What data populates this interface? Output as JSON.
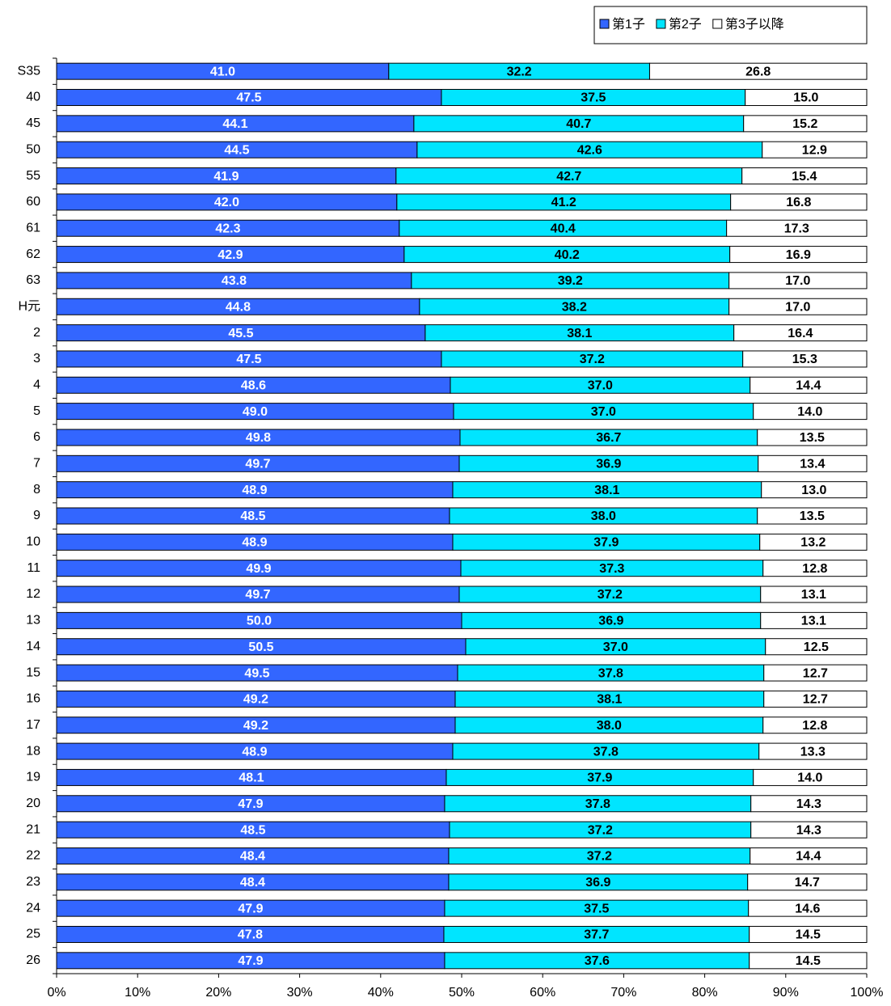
{
  "chart_data": {
    "type": "stacked-bar-horizontal",
    "categories": [
      "S35",
      "40",
      "45",
      "50",
      "55",
      "60",
      "61",
      "62",
      "63",
      "H元",
      "2",
      "3",
      "4",
      "5",
      "6",
      "7",
      "8",
      "9",
      "10",
      "11",
      "12",
      "13",
      "14",
      "15",
      "16",
      "17",
      "18",
      "19",
      "20",
      "21",
      "22",
      "23",
      "24",
      "25",
      "26"
    ],
    "series": [
      {
        "name": "第1子",
        "color": "#3366ff",
        "label_color": "#ffffff",
        "values": [
          41.0,
          47.5,
          44.1,
          44.5,
          41.9,
          42.0,
          42.3,
          42.9,
          43.8,
          44.8,
          45.5,
          47.5,
          48.6,
          49.0,
          49.8,
          49.7,
          48.9,
          48.5,
          48.9,
          49.9,
          49.7,
          50.0,
          50.5,
          49.5,
          49.2,
          49.2,
          48.9,
          48.1,
          47.9,
          48.5,
          48.4,
          48.4,
          47.9,
          47.8,
          47.9
        ],
        "value_labels": [
          "41.0",
          "47.5",
          "44.1",
          "44.5",
          "41.9",
          "42.0",
          "42.3",
          "42.9",
          "43.8",
          "44.8",
          "45.5",
          "47.5",
          "48.6",
          "49.0",
          "49.8",
          "49.7",
          "48.9",
          "48.5",
          "48.9",
          "49.9",
          "49.7",
          "50.0",
          "50.5",
          "49.5",
          "49.2",
          "49.2",
          "48.9",
          "48.1",
          "47.9",
          "48.5",
          "48.4",
          "48.4",
          "47.9",
          "47.8",
          "47.9"
        ]
      },
      {
        "name": "第2子",
        "color": "#00e5ff",
        "label_color": "#000000",
        "values": [
          32.2,
          37.5,
          40.7,
          42.6,
          42.7,
          41.2,
          40.4,
          40.2,
          39.2,
          38.2,
          38.1,
          37.2,
          37.0,
          37.0,
          36.7,
          36.9,
          38.1,
          38.0,
          37.9,
          37.3,
          37.2,
          36.9,
          37.0,
          37.8,
          38.1,
          38.0,
          37.8,
          37.9,
          37.8,
          37.2,
          37.2,
          36.9,
          37.5,
          37.7,
          37.6
        ],
        "value_labels": [
          "32.2",
          "37.5",
          "40.7",
          "42.6",
          "42.7",
          "41.2",
          "40.4",
          "40.2",
          "39.2",
          "38.2",
          "38.1",
          "37.2",
          "37.0",
          "37.0",
          "36.7",
          "36.9",
          "38.1",
          "38.0",
          "37.9",
          "37.3",
          "37.2",
          "36.9",
          "37.0",
          "37.8",
          "38.1",
          "38.0",
          "37.8",
          "37.9",
          "37.8",
          "37.2",
          "37.2",
          "36.9",
          "37.5",
          "37.7",
          "37.6"
        ]
      },
      {
        "name": "第3子以降",
        "color": "#ffffff",
        "label_color": "#000000",
        "values": [
          26.8,
          15.0,
          15.2,
          12.9,
          15.4,
          16.8,
          17.3,
          16.9,
          17.0,
          17.0,
          16.4,
          15.3,
          14.4,
          14.0,
          13.5,
          13.4,
          13.0,
          13.5,
          13.2,
          12.8,
          13.1,
          13.1,
          12.5,
          12.7,
          12.7,
          12.8,
          13.3,
          14.0,
          14.3,
          14.3,
          14.4,
          14.7,
          14.6,
          14.5,
          14.5
        ],
        "value_labels": [
          "26.8",
          "15.0",
          "15.2",
          "12.9",
          "15.4",
          "16.8",
          "17.3",
          "16.9",
          "17.0",
          "17.0",
          "16.4",
          "15.3",
          "14.4",
          "14.0",
          "13.5",
          "13.4",
          "13.0",
          "13.5",
          "13.2",
          "12.8",
          "13.1",
          "13.1",
          "12.5",
          "12.7",
          "12.7",
          "12.8",
          "13.3",
          "14.0",
          "14.3",
          "14.3",
          "14.4",
          "14.7",
          "14.6",
          "14.5",
          "14.5"
        ]
      }
    ],
    "xlim": [
      0,
      100
    ],
    "xticks": [
      {
        "value": 0,
        "label": "0%"
      },
      {
        "value": 10,
        "label": "10%"
      },
      {
        "value": 20,
        "label": "20%"
      },
      {
        "value": 30,
        "label": "30%"
      },
      {
        "value": 40,
        "label": "40%"
      },
      {
        "value": 50,
        "label": "50%"
      },
      {
        "value": 60,
        "label": "60%"
      },
      {
        "value": 70,
        "label": "70%"
      },
      {
        "value": 80,
        "label": "80%"
      },
      {
        "value": 90,
        "label": "90%"
      },
      {
        "value": 100,
        "label": "100%"
      }
    ],
    "legend": "top-right"
  }
}
